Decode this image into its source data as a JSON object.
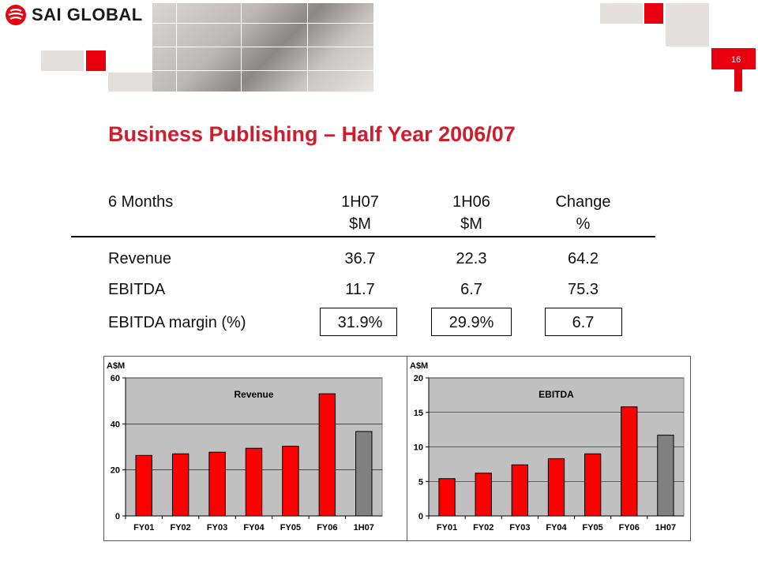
{
  "header": {
    "logo_text": "SAI GLOBAL",
    "page_number": "16",
    "colors": {
      "brand_red": "#e8000f",
      "gray_block": "#e2dfdc"
    }
  },
  "title": "Business Publishing – Half Year 2006/07",
  "table": {
    "head": {
      "label": "6 Months",
      "c1": "1H07",
      "c2": "1H06",
      "c3": "Change"
    },
    "units": {
      "c1": "$M",
      "c2": "$M",
      "c3": "%"
    },
    "rows": [
      {
        "label": "Revenue",
        "c1": "36.7",
        "c2": "22.3",
        "c3": "64.2"
      },
      {
        "label": "EBITDA",
        "c1": "11.7",
        "c2": "6.7",
        "c3": "75.3"
      },
      {
        "label": "EBITDA margin (%)",
        "c1": "31.9%",
        "c2": "29.9%",
        "c3": "6.7"
      }
    ]
  },
  "chart_data": [
    {
      "type": "bar",
      "title": "Revenue",
      "unit": "A$M",
      "categories": [
        "FY01",
        "FY02",
        "FY03",
        "FY04",
        "FY05",
        "FY06",
        "1H07"
      ],
      "values": [
        26.3,
        27,
        27.7,
        29.4,
        30.3,
        53.1,
        36.7
      ],
      "ylim": [
        0,
        60
      ],
      "yticks": [
        0,
        20,
        40,
        60
      ],
      "grid": true,
      "colors": {
        "bar": "#ff0000",
        "highlight": "#808080",
        "plot_bg": "#c0c0c0"
      }
    },
    {
      "type": "bar",
      "title": "EBITDA",
      "unit": "A$M",
      "categories": [
        "FY01",
        "FY02",
        "FY03",
        "FY04",
        "FY05",
        "FY06",
        "1H07"
      ],
      "values": [
        5.4,
        6.2,
        7.4,
        8.3,
        9,
        15.8,
        11.7
      ],
      "ylim": [
        0,
        20
      ],
      "yticks": [
        0,
        5,
        10,
        15,
        20
      ],
      "grid": true,
      "colors": {
        "bar": "#ff0000",
        "highlight": "#808080",
        "plot_bg": "#c0c0c0"
      }
    }
  ]
}
